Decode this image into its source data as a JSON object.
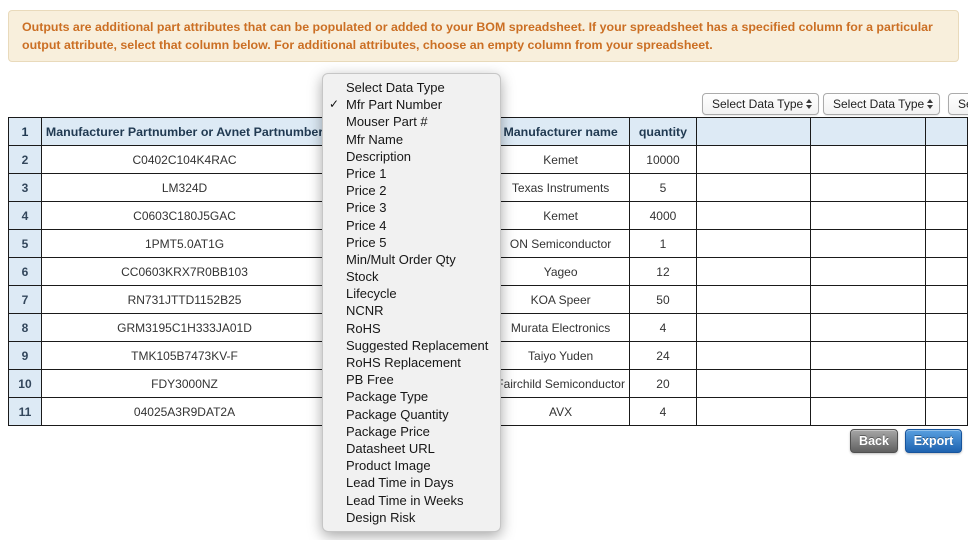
{
  "banner": {
    "text": "Outputs are additional part attributes that can be populated or added to your BOM spreadsheet. If your spreadsheet has a specified column for a particular output attribute, select that column below. For additional attributes, choose an empty column from your spreadsheet."
  },
  "column_selectors": {
    "label": "Select Data Type"
  },
  "dropdown_menu": {
    "checked_item": "Mfr Part Number",
    "items": [
      "Select Data Type",
      "Mfr Part Number",
      "Mouser Part #",
      "Mfr Name",
      "Description",
      "Price 1",
      "Price 2",
      "Price 3",
      "Price 4",
      "Price 5",
      "Min/Mult Order Qty",
      "Stock",
      "Lifecycle",
      "NCNR",
      "RoHS",
      "Suggested Replacement",
      "RoHS Replacement",
      "PB Free",
      "Package Type",
      "Package Quantity",
      "Package Price",
      "Datasheet URL",
      "Product Image",
      "Lead Time in Days",
      "Lead Time in Weeks",
      "Design Risk"
    ]
  },
  "table": {
    "header": {
      "row_number": "1",
      "part_column": "Manufacturer Partnumber or Avnet Partnumber",
      "manufacturer_column": "Manufacturer name",
      "quantity_column": "quantity"
    },
    "rows": [
      {
        "num": "2",
        "part": "C0402C104K4RAC",
        "manufacturer": "Kemet",
        "quantity": "10000"
      },
      {
        "num": "3",
        "part": "LM324D",
        "manufacturer": "Texas Instruments",
        "quantity": "5"
      },
      {
        "num": "4",
        "part": "C0603C180J5GAC",
        "manufacturer": "Kemet",
        "quantity": "4000"
      },
      {
        "num": "5",
        "part": "1PMT5.0AT1G",
        "manufacturer": "ON Semiconductor",
        "quantity": "1"
      },
      {
        "num": "6",
        "part": "CC0603KRX7R0BB103",
        "manufacturer": "Yageo",
        "quantity": "12"
      },
      {
        "num": "7",
        "part": "RN731JTTD1152B25",
        "manufacturer": "KOA Speer",
        "quantity": "50"
      },
      {
        "num": "8",
        "part": "GRM3195C1H333JA01D",
        "manufacturer": "Murata Electronics",
        "quantity": "4"
      },
      {
        "num": "9",
        "part": "TMK105B7473KV-F",
        "manufacturer": "Taiyo Yuden",
        "quantity": "24"
      },
      {
        "num": "10",
        "part": "FDY3000NZ",
        "manufacturer": "Fairchild Semiconductor",
        "quantity": "20"
      },
      {
        "num": "11",
        "part": "04025A3R9DAT2A",
        "manufacturer": "AVX",
        "quantity": "4"
      }
    ]
  },
  "buttons": {
    "back": "Back",
    "export": "Export"
  },
  "colors": {
    "banner_bg": "#f8efdc",
    "banner_text": "#cb6f24",
    "table_header_bg": "#ddeaf5",
    "export_blue": "#1e63b0",
    "back_gray": "#707070"
  }
}
